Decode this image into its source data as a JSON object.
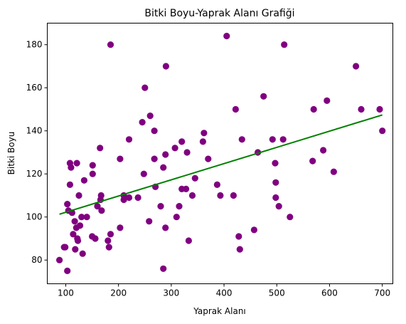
{
  "chart_data": {
    "type": "scatter",
    "title": "Bitki Boyu-Yaprak Alanı Grafiği",
    "xlabel": "Yaprak Alanı",
    "ylabel": "Bitki Boyu",
    "xlim": [
      65,
      720
    ],
    "ylim": [
      69,
      190
    ],
    "xticks": [
      100,
      200,
      300,
      400,
      500,
      600,
      700
    ],
    "yticks": [
      80,
      100,
      120,
      140,
      160,
      180
    ],
    "grid": false,
    "point_color": "#800080",
    "points": [
      [
        88,
        80
      ],
      [
        97,
        86
      ],
      [
        99,
        86
      ],
      [
        103,
        106
      ],
      [
        103,
        75
      ],
      [
        105,
        103
      ],
      [
        108,
        125
      ],
      [
        108,
        115
      ],
      [
        110,
        123
      ],
      [
        112,
        102
      ],
      [
        114,
        92
      ],
      [
        117,
        98
      ],
      [
        118,
        85
      ],
      [
        120,
        95
      ],
      [
        121,
        125
      ],
      [
        122,
        90
      ],
      [
        123,
        89
      ],
      [
        125,
        110
      ],
      [
        127,
        96
      ],
      [
        130,
        100
      ],
      [
        132,
        83
      ],
      [
        135,
        117
      ],
      [
        140,
        100
      ],
      [
        150,
        91
      ],
      [
        151,
        124
      ],
      [
        151,
        120
      ],
      [
        156,
        90
      ],
      [
        160,
        105
      ],
      [
        165,
        132
      ],
      [
        166,
        108
      ],
      [
        167,
        110
      ],
      [
        168,
        103
      ],
      [
        180,
        89
      ],
      [
        182,
        86
      ],
      [
        185,
        180
      ],
      [
        185,
        92
      ],
      [
        203,
        95
      ],
      [
        203,
        127
      ],
      [
        210,
        110
      ],
      [
        210,
        108
      ],
      [
        220,
        109
      ],
      [
        220,
        136
      ],
      [
        237,
        109
      ],
      [
        245,
        144
      ],
      [
        248,
        120
      ],
      [
        250,
        160
      ],
      [
        258,
        98
      ],
      [
        260,
        147
      ],
      [
        268,
        127
      ],
      [
        268,
        140
      ],
      [
        270,
        114
      ],
      [
        280,
        105
      ],
      [
        285,
        76
      ],
      [
        285,
        123
      ],
      [
        289,
        129
      ],
      [
        289,
        95
      ],
      [
        290,
        170
      ],
      [
        307,
        132
      ],
      [
        310,
        100
      ],
      [
        315,
        105
      ],
      [
        320,
        135
      ],
      [
        320,
        113
      ],
      [
        328,
        113
      ],
      [
        330,
        130
      ],
      [
        333,
        89
      ],
      [
        340,
        110
      ],
      [
        345,
        118
      ],
      [
        360,
        135
      ],
      [
        362,
        139
      ],
      [
        370,
        127
      ],
      [
        387,
        115
      ],
      [
        393,
        110
      ],
      [
        405,
        184
      ],
      [
        418,
        110
      ],
      [
        422,
        150
      ],
      [
        428,
        91
      ],
      [
        430,
        85
      ],
      [
        434,
        136
      ],
      [
        457,
        94
      ],
      [
        464,
        130
      ],
      [
        475,
        156
      ],
      [
        492,
        136
      ],
      [
        497,
        125
      ],
      [
        498,
        116
      ],
      [
        498,
        109
      ],
      [
        504,
        105
      ],
      [
        512,
        136
      ],
      [
        514,
        180
      ],
      [
        525,
        100
      ],
      [
        568,
        126
      ],
      [
        570,
        150
      ],
      [
        588,
        131
      ],
      [
        595,
        154
      ],
      [
        608,
        121
      ],
      [
        650,
        170
      ],
      [
        660,
        150
      ],
      [
        695,
        150
      ],
      [
        700,
        140
      ]
    ],
    "trendline": {
      "color": "#008000",
      "x": [
        88,
        700
      ],
      "y": [
        101.3,
        147.4
      ]
    }
  }
}
